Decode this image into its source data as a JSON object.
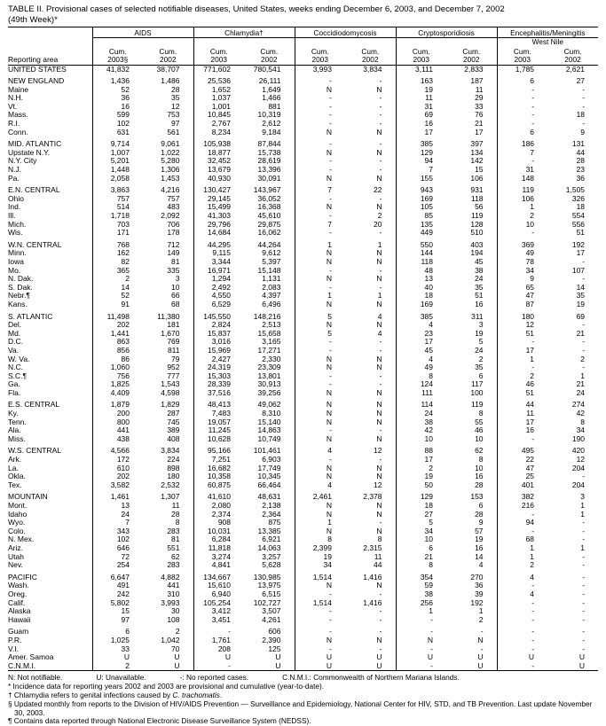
{
  "title": {
    "line1": "TABLE II. Provisional cases of selected notifiable diseases, United States, weeks ending December 6, 2003, and December 7, 2002",
    "line2": "(49th Week)*"
  },
  "table": {
    "area_header": "Reporting area",
    "groups": [
      {
        "label": "AIDS",
        "sub": ""
      },
      {
        "label": "Chlamydia†",
        "sub": ""
      },
      {
        "label": "Coccidiodomycosis",
        "sub": ""
      },
      {
        "label": "Cryptosporidiosis",
        "sub": ""
      },
      {
        "label": "Encephalitis/Meningitis",
        "sub": "West Nile"
      }
    ],
    "cols": [
      {
        "l1": "Cum.",
        "l2": "2003§"
      },
      {
        "l1": "Cum.",
        "l2": "2002"
      },
      {
        "l1": "Cum.",
        "l2": "2003"
      },
      {
        "l1": "Cum.",
        "l2": "2002"
      },
      {
        "l1": "Cum.",
        "l2": "2003"
      },
      {
        "l1": "Cum.",
        "l2": "2002"
      },
      {
        "l1": "Cum.",
        "l2": "2003"
      },
      {
        "l1": "Cum.",
        "l2": "2002"
      },
      {
        "l1": "Cum.",
        "l2": "2003"
      },
      {
        "l1": "Cum.",
        "l2": "2002"
      }
    ],
    "rows": [
      {
        "area": "UNITED STATES",
        "v": [
          "41,832",
          "38,707",
          "771,602",
          "780,541",
          "3,993",
          "3,834",
          "3,111",
          "2,833",
          "1,785",
          "2,621"
        ]
      },
      {
        "area": "NEW ENGLAND",
        "gap": true,
        "v": [
          "1,436",
          "1,486",
          "25,536",
          "26,111",
          "-",
          "-",
          "163",
          "187",
          "6",
          "27"
        ]
      },
      {
        "area": "Maine",
        "v": [
          "52",
          "28",
          "1,652",
          "1,649",
          "N",
          "N",
          "19",
          "11",
          "-",
          "-"
        ]
      },
      {
        "area": "N.H.",
        "v": [
          "36",
          "35",
          "1,037",
          "1,466",
          "-",
          "-",
          "11",
          "29",
          "-",
          "-"
        ]
      },
      {
        "area": "Vt.",
        "v": [
          "16",
          "12",
          "1,001",
          "881",
          "-",
          "-",
          "31",
          "33",
          "-",
          "-"
        ]
      },
      {
        "area": "Mass.",
        "v": [
          "599",
          "753",
          "10,845",
          "10,319",
          "-",
          "-",
          "69",
          "76",
          "-",
          "18"
        ]
      },
      {
        "area": "R.I.",
        "v": [
          "102",
          "97",
          "2,767",
          "2,612",
          "-",
          "-",
          "16",
          "21",
          "-",
          "-"
        ]
      },
      {
        "area": "Conn.",
        "v": [
          "631",
          "561",
          "8,234",
          "9,184",
          "N",
          "N",
          "17",
          "17",
          "6",
          "9"
        ]
      },
      {
        "area": "MID. ATLANTIC",
        "gap": true,
        "v": [
          "9,714",
          "9,061",
          "105,938",
          "87,844",
          "-",
          "-",
          "385",
          "397",
          "186",
          "131"
        ]
      },
      {
        "area": "Upstate N.Y.",
        "v": [
          "1,007",
          "1,022",
          "18,877",
          "15,738",
          "N",
          "N",
          "129",
          "134",
          "7",
          "44"
        ]
      },
      {
        "area": "N.Y. City",
        "v": [
          "5,201",
          "5,280",
          "32,452",
          "28,619",
          "-",
          "-",
          "94",
          "142",
          "-",
          "28"
        ]
      },
      {
        "area": "N.J.",
        "v": [
          "1,448",
          "1,306",
          "13,679",
          "13,396",
          "-",
          "-",
          "7",
          "15",
          "31",
          "23"
        ]
      },
      {
        "area": "Pa.",
        "v": [
          "2,058",
          "1,453",
          "40,930",
          "30,091",
          "N",
          "N",
          "155",
          "106",
          "148",
          "36"
        ]
      },
      {
        "area": "E.N. CENTRAL",
        "gap": true,
        "v": [
          "3,863",
          "4,216",
          "130,427",
          "143,967",
          "7",
          "22",
          "943",
          "931",
          "119",
          "1,505"
        ]
      },
      {
        "area": "Ohio",
        "v": [
          "757",
          "757",
          "29,145",
          "36,052",
          "-",
          "-",
          "169",
          "118",
          "106",
          "326"
        ]
      },
      {
        "area": "Ind.",
        "v": [
          "514",
          "483",
          "15,499",
          "16,368",
          "N",
          "N",
          "105",
          "56",
          "1",
          "18"
        ]
      },
      {
        "area": "Ill.",
        "v": [
          "1,718",
          "2,092",
          "41,303",
          "45,610",
          "-",
          "2",
          "85",
          "119",
          "2",
          "554"
        ]
      },
      {
        "area": "Mich.",
        "v": [
          "703",
          "706",
          "29,796",
          "29,875",
          "7",
          "20",
          "135",
          "128",
          "10",
          "556"
        ]
      },
      {
        "area": "Wis.",
        "v": [
          "171",
          "178",
          "14,684",
          "16,062",
          "-",
          "-",
          "449",
          "510",
          "-",
          "51"
        ]
      },
      {
        "area": "W.N. CENTRAL",
        "gap": true,
        "v": [
          "768",
          "712",
          "44,295",
          "44,264",
          "1",
          "1",
          "550",
          "403",
          "369",
          "192"
        ]
      },
      {
        "area": "Minn.",
        "v": [
          "162",
          "149",
          "9,115",
          "9,612",
          "N",
          "N",
          "144",
          "194",
          "49",
          "17"
        ]
      },
      {
        "area": "Iowa",
        "v": [
          "82",
          "81",
          "3,344",
          "5,397",
          "N",
          "N",
          "118",
          "45",
          "78",
          "-"
        ]
      },
      {
        "area": "Mo.",
        "v": [
          "365",
          "335",
          "16,971",
          "15,148",
          "-",
          "-",
          "48",
          "38",
          "34",
          "107"
        ]
      },
      {
        "area": "N. Dak.",
        "v": [
          "2",
          "3",
          "1,294",
          "1,131",
          "N",
          "N",
          "13",
          "24",
          "9",
          "-"
        ]
      },
      {
        "area": "S. Dak.",
        "v": [
          "14",
          "10",
          "2,492",
          "2,083",
          "-",
          "-",
          "40",
          "35",
          "65",
          "14"
        ]
      },
      {
        "area": "Nebr.¶",
        "v": [
          "52",
          "66",
          "4,550",
          "4,397",
          "1",
          "1",
          "18",
          "51",
          "47",
          "35"
        ]
      },
      {
        "area": "Kans.",
        "v": [
          "91",
          "68",
          "6,529",
          "6,496",
          "N",
          "N",
          "169",
          "16",
          "87",
          "19"
        ]
      },
      {
        "area": "S. ATLANTIC",
        "gap": true,
        "v": [
          "11,498",
          "11,380",
          "145,550",
          "148,216",
          "5",
          "4",
          "385",
          "311",
          "180",
          "69"
        ]
      },
      {
        "area": "Del.",
        "v": [
          "202",
          "181",
          "2,824",
          "2,513",
          "N",
          "N",
          "4",
          "3",
          "12",
          "-"
        ]
      },
      {
        "area": "Md.",
        "v": [
          "1,441",
          "1,670",
          "15,837",
          "15,658",
          "5",
          "4",
          "23",
          "19",
          "51",
          "21"
        ]
      },
      {
        "area": "D.C.",
        "v": [
          "863",
          "769",
          "3,016",
          "3,165",
          "-",
          "-",
          "17",
          "5",
          "-",
          "-"
        ]
      },
      {
        "area": "Va.",
        "v": [
          "856",
          "811",
          "15,969",
          "17,271",
          "-",
          "-",
          "45",
          "24",
          "17",
          "-"
        ]
      },
      {
        "area": "W. Va.",
        "v": [
          "86",
          "79",
          "2,427",
          "2,330",
          "N",
          "N",
          "4",
          "2",
          "1",
          "2"
        ]
      },
      {
        "area": "N.C.",
        "v": [
          "1,060",
          "952",
          "24,319",
          "23,309",
          "N",
          "N",
          "49",
          "35",
          "-",
          "-"
        ]
      },
      {
        "area": "S.C.¶",
        "v": [
          "756",
          "777",
          "15,303",
          "13,801",
          "-",
          "-",
          "8",
          "6",
          "2",
          "1"
        ]
      },
      {
        "area": "Ga.",
        "v": [
          "1,825",
          "1,543",
          "28,339",
          "30,913",
          "-",
          "-",
          "124",
          "117",
          "46",
          "21"
        ]
      },
      {
        "area": "Fla.",
        "v": [
          "4,409",
          "4,598",
          "37,516",
          "39,256",
          "N",
          "N",
          "111",
          "100",
          "51",
          "24"
        ]
      },
      {
        "area": "E.S. CENTRAL",
        "gap": true,
        "v": [
          "1,879",
          "1,829",
          "48,413",
          "49,062",
          "N",
          "N",
          "114",
          "119",
          "44",
          "274"
        ]
      },
      {
        "area": "Ky.",
        "v": [
          "200",
          "287",
          "7,483",
          "8,310",
          "N",
          "N",
          "24",
          "8",
          "11",
          "42"
        ]
      },
      {
        "area": "Tenn.",
        "v": [
          "800",
          "745",
          "19,057",
          "15,140",
          "N",
          "N",
          "38",
          "55",
          "17",
          "8"
        ]
      },
      {
        "area": "Ala.",
        "v": [
          "441",
          "389",
          "11,245",
          "14,863",
          "-",
          "-",
          "42",
          "46",
          "16",
          "34"
        ]
      },
      {
        "area": "Miss.",
        "v": [
          "438",
          "408",
          "10,628",
          "10,749",
          "N",
          "N",
          "10",
          "10",
          "-",
          "190"
        ]
      },
      {
        "area": "W.S. CENTRAL",
        "gap": true,
        "v": [
          "4,566",
          "3,834",
          "95,166",
          "101,461",
          "4",
          "12",
          "88",
          "62",
          "495",
          "420"
        ]
      },
      {
        "area": "Ark.",
        "v": [
          "172",
          "224",
          "7,251",
          "6,903",
          "-",
          "-",
          "17",
          "8",
          "22",
          "12"
        ]
      },
      {
        "area": "La.",
        "v": [
          "610",
          "898",
          "16,682",
          "17,749",
          "N",
          "N",
          "2",
          "10",
          "47",
          "204"
        ]
      },
      {
        "area": "Okla.",
        "v": [
          "202",
          "180",
          "10,358",
          "10,345",
          "N",
          "N",
          "19",
          "16",
          "25",
          "-"
        ]
      },
      {
        "area": "Tex.",
        "v": [
          "3,582",
          "2,532",
          "60,875",
          "66,464",
          "4",
          "12",
          "50",
          "28",
          "401",
          "204"
        ]
      },
      {
        "area": "MOUNTAIN",
        "gap": true,
        "v": [
          "1,461",
          "1,307",
          "41,610",
          "48,631",
          "2,461",
          "2,378",
          "129",
          "153",
          "382",
          "3"
        ]
      },
      {
        "area": "Mont.",
        "v": [
          "13",
          "11",
          "2,080",
          "2,138",
          "N",
          "N",
          "18",
          "6",
          "216",
          "1"
        ]
      },
      {
        "area": "Idaho",
        "v": [
          "24",
          "28",
          "2,374",
          "2,364",
          "N",
          "N",
          "27",
          "28",
          "-",
          "1"
        ]
      },
      {
        "area": "Wyo.",
        "v": [
          "7",
          "8",
          "908",
          "875",
          "1",
          "-",
          "5",
          "9",
          "94",
          "-"
        ]
      },
      {
        "area": "Colo.",
        "v": [
          "343",
          "283",
          "10,031",
          "13,385",
          "N",
          "N",
          "34",
          "57",
          "-",
          "-"
        ]
      },
      {
        "area": "N. Mex.",
        "v": [
          "102",
          "81",
          "6,284",
          "6,921",
          "8",
          "8",
          "10",
          "19",
          "68",
          "-"
        ]
      },
      {
        "area": "Ariz.",
        "v": [
          "646",
          "551",
          "11,818",
          "14,063",
          "2,399",
          "2,315",
          "6",
          "16",
          "1",
          "1"
        ]
      },
      {
        "area": "Utah",
        "v": [
          "72",
          "62",
          "3,274",
          "3,257",
          "19",
          "11",
          "21",
          "14",
          "1",
          "-"
        ]
      },
      {
        "area": "Nev.",
        "v": [
          "254",
          "283",
          "4,841",
          "5,628",
          "34",
          "44",
          "8",
          "4",
          "2",
          "-"
        ]
      },
      {
        "area": "PACIFIC",
        "gap": true,
        "v": [
          "6,647",
          "4,882",
          "134,667",
          "130,985",
          "1,514",
          "1,416",
          "354",
          "270",
          "4",
          "-"
        ]
      },
      {
        "area": "Wash.",
        "v": [
          "491",
          "441",
          "15,610",
          "13,975",
          "N",
          "N",
          "59",
          "36",
          "-",
          "-"
        ]
      },
      {
        "area": "Oreg.",
        "v": [
          "242",
          "310",
          "6,940",
          "6,515",
          "-",
          "-",
          "38",
          "39",
          "4",
          "-"
        ]
      },
      {
        "area": "Calif.",
        "v": [
          "5,802",
          "3,993",
          "105,254",
          "102,727",
          "1,514",
          "1,416",
          "256",
          "192",
          "-",
          "-"
        ]
      },
      {
        "area": "Alaska",
        "v": [
          "15",
          "30",
          "3,412",
          "3,507",
          "-",
          "-",
          "1",
          "1",
          "-",
          "-"
        ]
      },
      {
        "area": "Hawaii",
        "v": [
          "97",
          "108",
          "3,451",
          "4,261",
          "-",
          "-",
          "-",
          "2",
          "-",
          "-"
        ]
      },
      {
        "area": "Guam",
        "gap": true,
        "v": [
          "6",
          "2",
          "-",
          "606",
          "-",
          "-",
          "-",
          "-",
          "-",
          "-"
        ]
      },
      {
        "area": "P.R.",
        "v": [
          "1,025",
          "1,042",
          "1,761",
          "2,390",
          "N",
          "N",
          "N",
          "N",
          "-",
          "-"
        ]
      },
      {
        "area": "V.I.",
        "v": [
          "33",
          "70",
          "208",
          "125",
          "-",
          "-",
          "-",
          "-",
          "-",
          "-"
        ]
      },
      {
        "area": "Amer. Samoa",
        "v": [
          "U",
          "U",
          "U",
          "U",
          "U",
          "U",
          "U",
          "U",
          "U",
          "U"
        ]
      },
      {
        "area": "C.N.M.I.",
        "v": [
          "2",
          "U",
          "-",
          "U",
          "U",
          "U",
          "-",
          "U",
          "-",
          "U"
        ]
      }
    ]
  },
  "legend": {
    "n": "N: Not notifiable.",
    "u": "U: Unavailable.",
    "dash": "-: No reported cases.",
    "cnmi": "C.N.M.I.: Commonwealth of Northern Mariana Islands."
  },
  "footnotes": {
    "star": "* Incidence data for reporting years 2002 and 2003 are provisional and cumulative (year-to-date).",
    "dagger_pre": "† Chlamydia refers to genital infections caused by ",
    "dagger_italic": "C. trachomatis",
    "dagger_post": ".",
    "section": "§ Updated monthly from reports to the Division of HIV/AIDS Prevention — Surveillance and Epidemiology, National Center for HIV, STD, and TB Prevention. Last update November 30, 2003.",
    "pilcrow": "¶ Contains data reported through National Electronic Disease Surveillance System (NEDSS)."
  }
}
